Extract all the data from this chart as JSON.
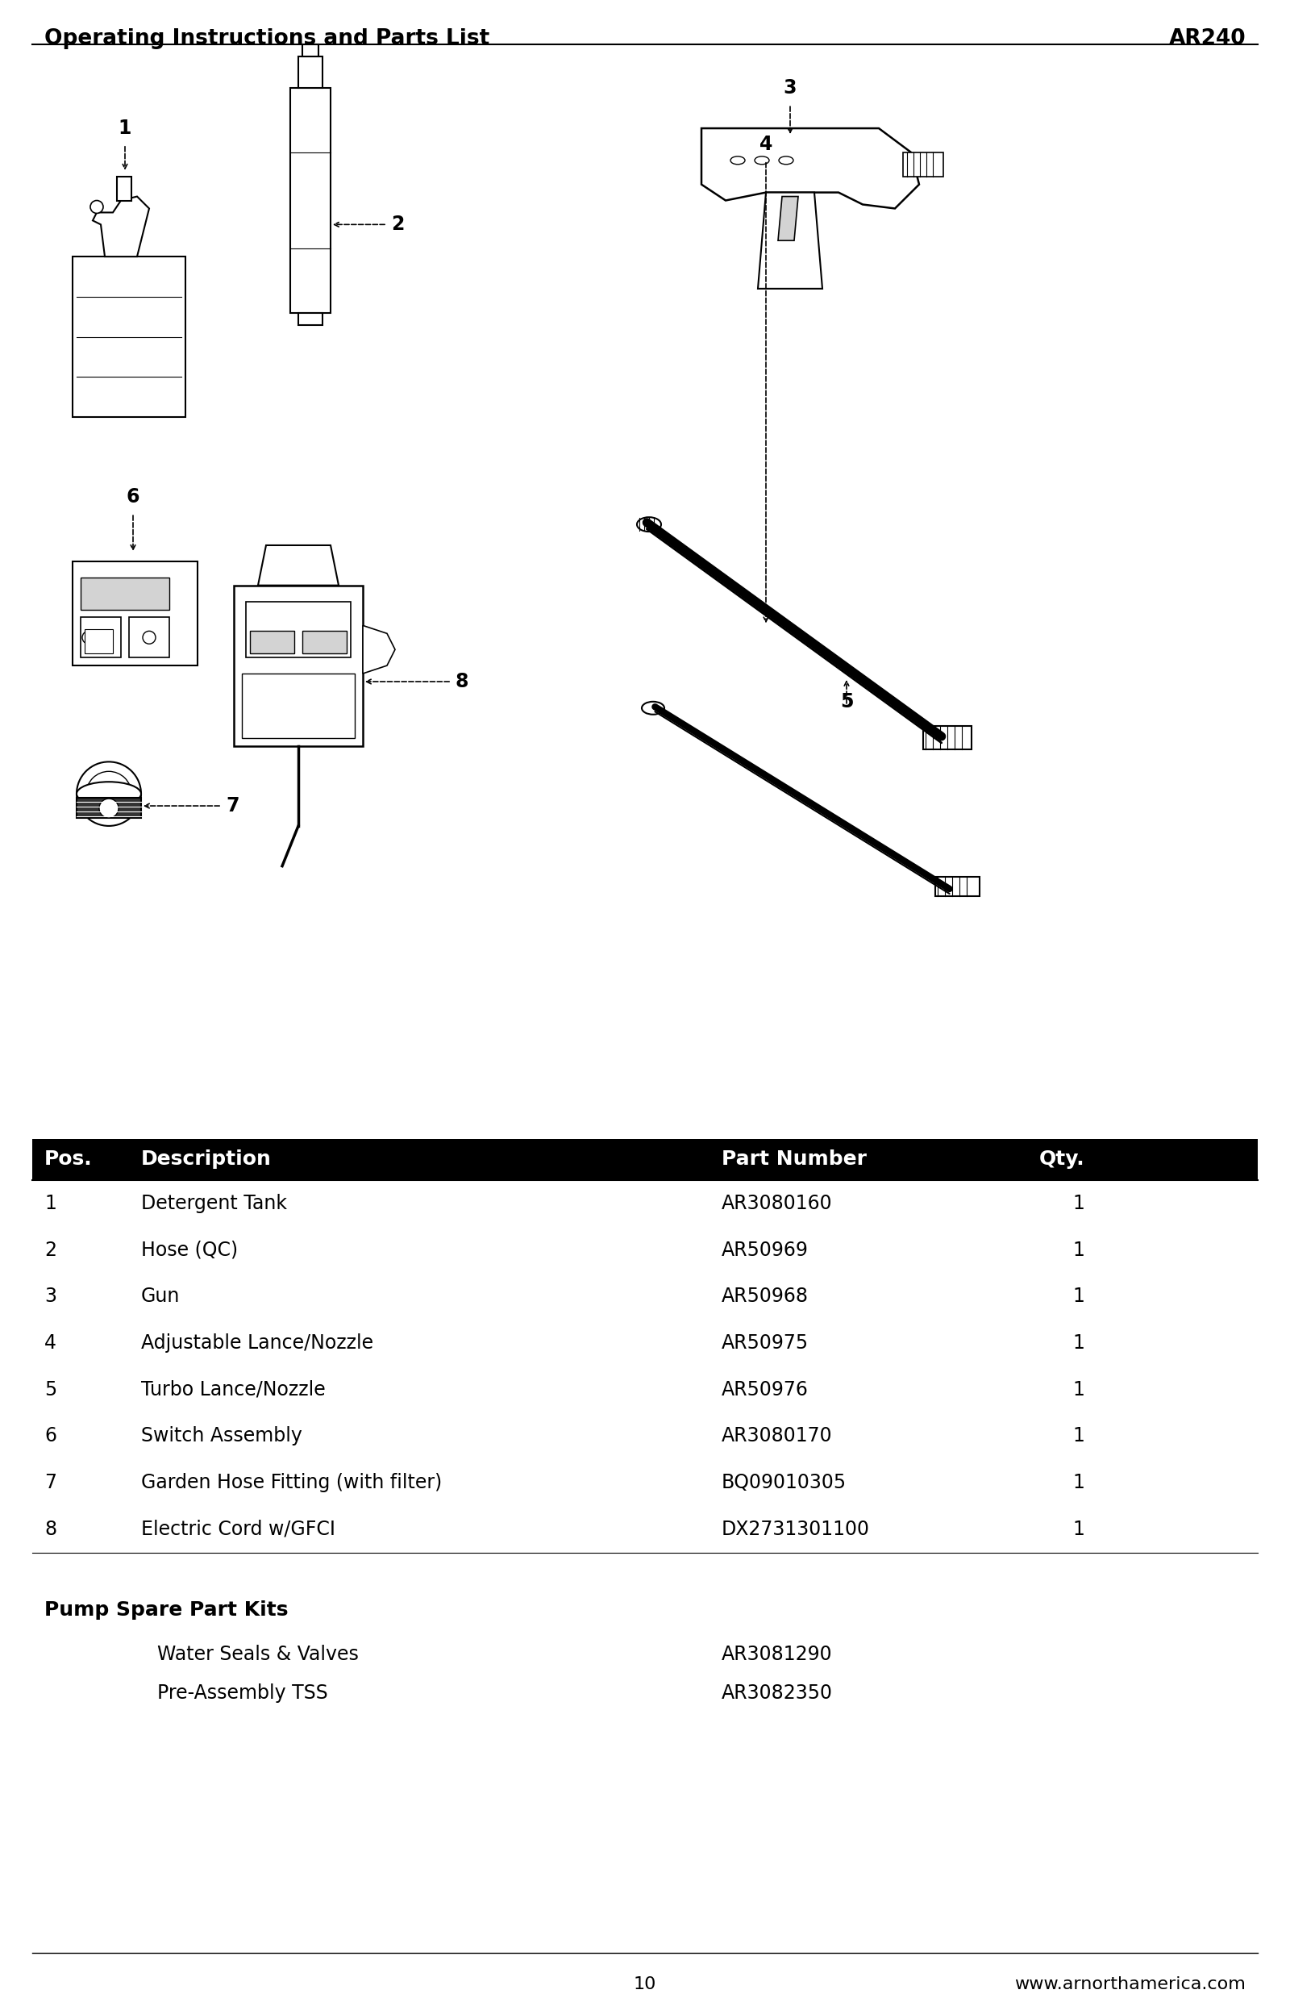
{
  "title_left": "Operating Instructions and Parts List",
  "title_right": "AR240",
  "bg_color": "#ffffff",
  "header_bg": "#000000",
  "header_fg": "#ffffff",
  "table_header": [
    "Pos.",
    "Description",
    "Part Number",
    "Qty."
  ],
  "table_rows": [
    [
      "1",
      "Detergent Tank",
      "AR3080160",
      "1"
    ],
    [
      "2",
      "Hose (QC)",
      "AR50969",
      "1"
    ],
    [
      "3",
      "Gun",
      "AR50968",
      "1"
    ],
    [
      "4",
      "Adjustable Lance/Nozzle",
      "AR50975",
      "1"
    ],
    [
      "5",
      "Turbo Lance/Nozzle",
      "AR50976",
      "1"
    ],
    [
      "6",
      "Switch Assembly",
      "AR3080170",
      "1"
    ],
    [
      "7",
      "Garden Hose Fitting (with filter)",
      "BQ09010305",
      "1"
    ],
    [
      "8",
      "Electric Cord w/GFCI",
      "DX2731301100",
      "1"
    ]
  ],
  "spare_parts_header": "Pump Spare Part Kits",
  "spare_parts_rows": [
    [
      "Water Seals & Valves",
      "AR3081290"
    ],
    [
      "Pre-Assembly TSS",
      "AR3082350"
    ]
  ],
  "footer_page": "10",
  "footer_url": "www.arnorthamerica.com",
  "line_color": "#000000",
  "text_color": "#000000"
}
